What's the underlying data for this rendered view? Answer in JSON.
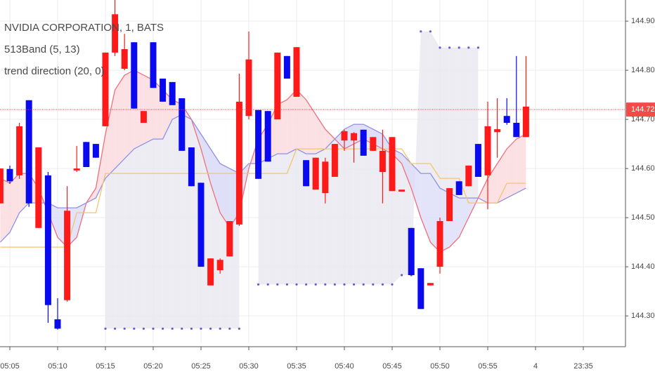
{
  "chart_data": {
    "type": "candlestick",
    "title": "NVIDIA CORPORATION, 1, BATS",
    "categories": [
      null,
      "05:05",
      null,
      null,
      null,
      null,
      "05:10",
      null,
      null,
      null,
      null,
      "05:15",
      null,
      null,
      null,
      null,
      "05:20",
      null,
      null,
      null,
      null,
      "05:25",
      null,
      null,
      null,
      null,
      "05:30",
      null,
      null,
      null,
      null,
      "05:35",
      null,
      null,
      null,
      null,
      "05:40",
      null,
      null,
      null,
      null,
      "05:45",
      null,
      null,
      null,
      null,
      "05:50",
      null,
      null,
      null,
      null,
      "05:55",
      null,
      null,
      null,
      null,
      "4",
      null,
      null,
      null,
      null,
      "23:35"
    ],
    "open": [
      144.529,
      144.599,
      144.586,
      144.739,
      144.479,
      144.586,
      144.293,
      144.332,
      144.596,
      144.654,
      144.65,
      144.686,
      144.836,
      144.803,
      144.857,
      144.693,
      144.857,
      144.783,
      144.776,
      144.743,
      144.643,
      144.571,
      144.362,
      144.393,
      144.421,
      144.486,
      144.707,
      144.719,
      144.717,
      144.7,
      144.829,
      144.746,
      144.617,
      144.557,
      144.55,
      144.583,
      144.657,
      144.657,
      144.679,
      144.636,
      144.593,
      144.554,
      144.553,
      144.479,
      144.397,
      144.362,
      144.4,
      144.493,
      144.574,
      144.564,
      144.65,
      144.586,
      144.674,
      144.707,
      144.693,
      144.664,
      null,
      null,
      null,
      null,
      null,
      null
    ],
    "high": [
      144.6,
      144.606,
      144.693,
      144.739,
      144.643,
      144.593,
      144.336,
      144.564,
      144.646,
      144.654,
      144.65,
      144.836,
      144.943,
      144.874,
      144.857,
      144.717,
      144.857,
      144.783,
      144.776,
      144.743,
      144.643,
      144.571,
      144.417,
      144.417,
      144.493,
      144.793,
      144.879,
      144.719,
      144.717,
      144.836,
      144.829,
      144.847,
      144.617,
      144.622,
      144.622,
      144.65,
      144.679,
      144.674,
      144.679,
      144.664,
      144.679,
      144.664,
      144.557,
      144.479,
      144.397,
      144.367,
      144.5,
      144.56,
      144.574,
      144.606,
      144.65,
      144.736,
      144.743,
      144.743,
      144.829,
      144.829,
      null,
      null,
      null,
      null,
      null,
      null
    ],
    "low": [
      144.529,
      144.569,
      144.579,
      144.522,
      144.479,
      144.286,
      144.272,
      144.329,
      144.593,
      144.603,
      144.622,
      144.686,
      144.829,
      144.8,
      144.722,
      144.693,
      144.764,
      144.736,
      144.729,
      144.636,
      144.564,
      144.4,
      144.362,
      144.386,
      144.421,
      144.483,
      144.7,
      144.579,
      144.614,
      144.7,
      144.783,
      144.746,
      144.564,
      144.557,
      144.529,
      144.583,
      144.636,
      144.612,
      144.626,
      144.636,
      144.529,
      144.554,
      144.553,
      144.383,
      144.314,
      144.362,
      144.386,
      144.493,
      144.546,
      144.564,
      144.583,
      144.517,
      144.622,
      144.689,
      144.664,
      144.664,
      null,
      null,
      null,
      null,
      null,
      null
    ],
    "close": [
      144.6,
      144.574,
      144.686,
      144.529,
      144.643,
      144.322,
      144.274,
      144.514,
      144.6,
      144.603,
      144.622,
      144.836,
      144.914,
      144.843,
      144.722,
      144.717,
      144.764,
      144.736,
      144.729,
      144.636,
      144.564,
      144.4,
      144.417,
      144.414,
      144.493,
      144.736,
      144.822,
      144.579,
      144.614,
      144.836,
      144.783,
      144.847,
      144.564,
      144.622,
      144.614,
      144.65,
      144.676,
      144.672,
      144.626,
      144.664,
      144.636,
      144.664,
      144.557,
      144.383,
      144.314,
      144.367,
      144.493,
      144.56,
      144.546,
      144.606,
      144.583,
      144.686,
      144.68,
      144.693,
      144.664,
      144.726,
      null,
      null,
      null,
      null,
      null,
      null
    ],
    "up_color": "#ff1a1a",
    "down_color": "#0a0af0",
    "indicators": [
      {
        "title": "513Band (5, 13)",
        "lines": [
          {
            "color": "#ef6f7a",
            "values": [
              144.58,
              144.57,
              144.59,
              144.59,
              144.56,
              144.51,
              144.46,
              144.44,
              144.46,
              144.53,
              144.56,
              144.67,
              144.76,
              144.79,
              144.8,
              144.79,
              144.78,
              144.76,
              144.74,
              144.73,
              144.7,
              144.64,
              144.57,
              144.51,
              144.48,
              144.51,
              144.6,
              144.66,
              144.69,
              144.73,
              144.74,
              144.76,
              144.74,
              144.71,
              144.68,
              144.66,
              144.64,
              144.65,
              144.66,
              144.65,
              144.64,
              144.63,
              144.61,
              144.56,
              144.5,
              144.45,
              144.43,
              144.44,
              144.46,
              144.5,
              144.54,
              144.58,
              144.61,
              144.64,
              144.66,
              144.67,
              null,
              null,
              null,
              null,
              null,
              null
            ]
          },
          {
            "color": "#8f8fe8",
            "values": [
              144.45,
              144.47,
              144.51,
              144.53,
              144.53,
              144.53,
              144.52,
              144.52,
              144.52,
              144.53,
              144.54,
              144.58,
              144.6,
              144.62,
              144.64,
              144.65,
              144.66,
              144.66,
              144.7,
              144.71,
              144.7,
              144.67,
              144.64,
              144.61,
              144.6,
              144.59,
              144.61,
              144.61,
              144.62,
              144.63,
              144.63,
              144.64,
              144.63,
              144.63,
              144.64,
              144.66,
              144.68,
              144.69,
              144.69,
              144.68,
              144.67,
              144.64,
              144.63,
              144.61,
              144.59,
              144.59,
              144.56,
              144.55,
              144.54,
              144.54,
              144.54,
              144.53,
              144.53,
              144.54,
              144.55,
              144.56,
              null,
              null,
              null,
              null,
              null,
              null
            ]
          }
        ]
      },
      {
        "title": "trend direction (20, 0)",
        "lines": [
          {
            "color": "#f5c46e",
            "values": [
              144.44,
              144.44,
              144.44,
              144.44,
              144.44,
              144.44,
              144.44,
              144.44,
              144.51,
              144.51,
              144.51,
              144.59,
              144.59,
              144.59,
              144.59,
              144.59,
              144.59,
              144.59,
              144.59,
              144.59,
              144.59,
              144.59,
              144.59,
              144.59,
              144.59,
              144.59,
              144.59,
              144.59,
              144.59,
              144.59,
              144.59,
              144.64,
              144.64,
              144.64,
              144.64,
              144.64,
              144.64,
              144.64,
              144.64,
              144.64,
              144.64,
              144.64,
              144.64,
              144.61,
              144.61,
              144.61,
              144.58,
              144.58,
              144.58,
              144.53,
              144.53,
              144.53,
              144.53,
              144.57,
              144.57,
              144.57,
              null,
              null,
              null,
              null,
              null,
              null
            ]
          }
        ],
        "dots": {
          "color": "#6a5acd",
          "values": [
            null,
            null,
            null,
            null,
            null,
            null,
            null,
            null,
            null,
            null,
            null,
            144.274,
            144.274,
            144.274,
            144.274,
            144.274,
            144.274,
            144.274,
            144.274,
            144.274,
            144.274,
            144.274,
            144.274,
            144.274,
            144.274,
            144.274,
            null,
            144.364,
            144.364,
            144.364,
            144.364,
            144.364,
            144.364,
            144.364,
            144.364,
            144.364,
            144.364,
            144.364,
            144.364,
            144.364,
            144.364,
            144.364,
            144.383,
            144.383,
            144.879,
            144.879,
            144.846,
            144.846,
            144.846,
            144.846,
            144.846,
            null,
            null,
            null,
            null,
            null,
            null,
            null,
            null,
            null,
            null,
            null
          ]
        }
      }
    ],
    "last_price": 144.72,
    "ylim": [
      144.243,
      144.943
    ],
    "yticks": [
      {
        "value": 144.3,
        "label": "144.30"
      },
      {
        "value": 144.4,
        "label": "144.40"
      },
      {
        "value": 144.5,
        "label": "144.50"
      },
      {
        "value": 144.6,
        "label": "144.60"
      },
      {
        "value": 144.7,
        "label": "144.70"
      },
      {
        "value": 144.8,
        "label": "144.80"
      },
      {
        "value": 144.9,
        "label": "144.90"
      }
    ],
    "grid": true
  }
}
